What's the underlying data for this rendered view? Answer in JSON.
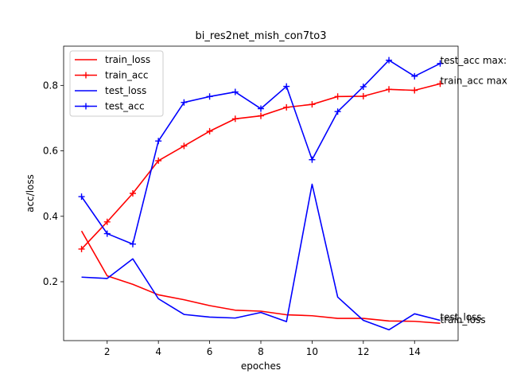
{
  "chart_data": {
    "type": "line",
    "title": "bi_res2net_mish_con7to3",
    "xlabel": "epoches",
    "ylabel": "acc/loss",
    "xlim": [
      0.3,
      15.7
    ],
    "ylim": [
      0.02,
      0.92
    ],
    "xticks": [
      2,
      4,
      6,
      8,
      10,
      12,
      14
    ],
    "yticks": [
      0.2,
      0.4,
      0.6,
      0.8
    ],
    "grid": false,
    "legend_position": "top-left",
    "x": [
      1,
      2,
      3,
      4,
      5,
      6,
      7,
      8,
      9,
      10,
      11,
      12,
      13,
      14,
      15
    ],
    "series": [
      {
        "name": "train_loss",
        "color": "#ff0000",
        "marker": "none",
        "values": [
          0.355,
          0.218,
          0.192,
          0.16,
          0.145,
          0.127,
          0.113,
          0.11,
          0.099,
          0.096,
          0.088,
          0.088,
          0.08,
          0.079,
          0.073
        ]
      },
      {
        "name": "train_acc",
        "color": "#ff0000",
        "marker": "plus",
        "values": [
          0.3,
          0.383,
          0.47,
          0.57,
          0.615,
          0.66,
          0.698,
          0.707,
          0.733,
          0.742,
          0.766,
          0.767,
          0.788,
          0.785,
          0.805
        ]
      },
      {
        "name": "test_loss",
        "color": "#0000ff",
        "marker": "none",
        "values": [
          0.214,
          0.21,
          0.27,
          0.148,
          0.1,
          0.092,
          0.089,
          0.106,
          0.078,
          0.498,
          0.153,
          0.082,
          0.053,
          0.102,
          0.082
        ]
      },
      {
        "name": "test_acc",
        "color": "#0000ff",
        "marker": "plus",
        "values": [
          0.46,
          0.347,
          0.315,
          0.63,
          0.748,
          0.766,
          0.78,
          0.729,
          0.797,
          0.573,
          0.72,
          0.796,
          0.877,
          0.828,
          0.867
        ]
      }
    ],
    "annotations": [
      {
        "text": "test_acc max:",
        "x": 15,
        "y": 0.867
      },
      {
        "text": "train_acc max",
        "x": 15,
        "y": 0.805
      },
      {
        "text": "test_loss",
        "x": 15,
        "y": 0.082
      },
      {
        "text": "train_loss",
        "x": 15,
        "y": 0.073
      }
    ]
  }
}
